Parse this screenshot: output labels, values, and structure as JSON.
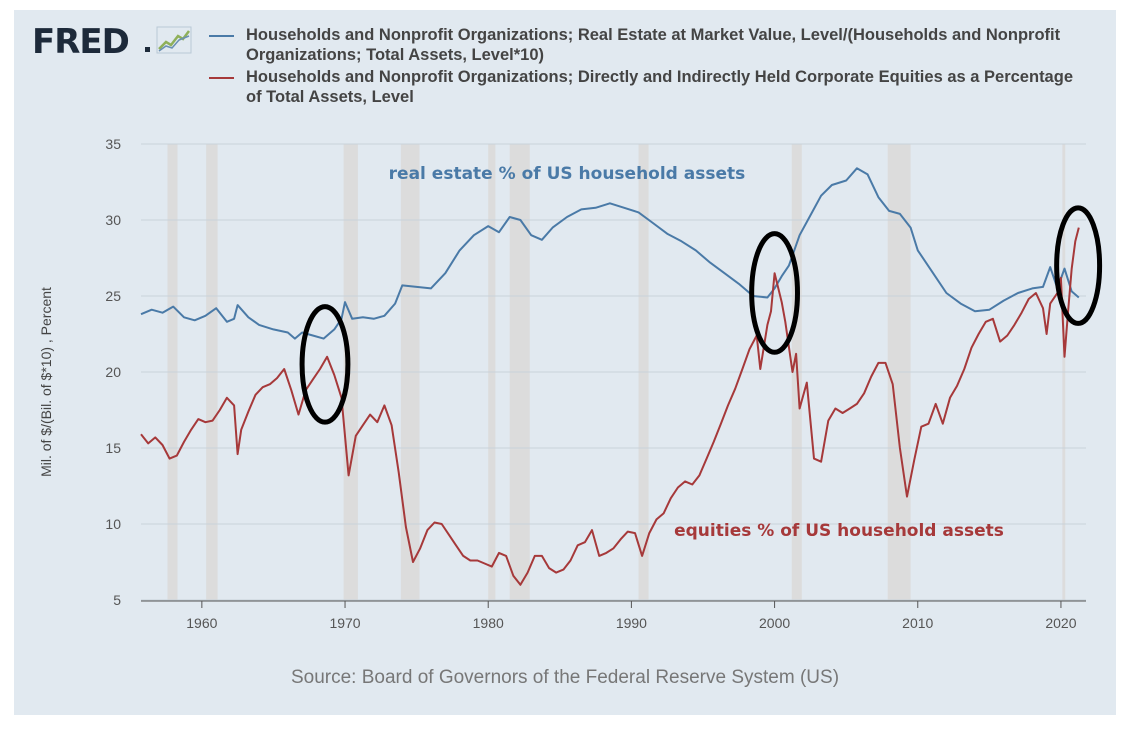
{
  "header": {
    "logo_text": "FRED",
    "logo_icon": "line-chart-icon"
  },
  "source_text": "Source: Board of Governors of the Federal Reserve System (US)",
  "colors": {
    "real_estate": "#4a7aa7",
    "equities": "#a6393a",
    "recession": "#dcdcdc",
    "circle": "#000000"
  },
  "chart_data": {
    "type": "line",
    "ylabel": "Mil. of $/(Bil. of $*10) , Percent",
    "xlabel": "",
    "xlim": [
      1955.75,
      2021.75
    ],
    "ylim": [
      5,
      35
    ],
    "x_ticks": [
      "1960",
      "1970",
      "1980",
      "1990",
      "2000",
      "2010",
      "2020"
    ],
    "y_ticks": [
      "5",
      "10",
      "15",
      "20",
      "25",
      "30",
      "35"
    ],
    "grid": "horizontal",
    "recessions": [
      [
        1957.6,
        1958.3
      ],
      [
        1960.3,
        1961.1
      ],
      [
        1969.9,
        1970.9
      ],
      [
        1973.9,
        1975.2
      ],
      [
        1980.0,
        1980.5
      ],
      [
        1981.5,
        1982.9
      ],
      [
        1990.5,
        1991.2
      ],
      [
        2001.2,
        2001.9
      ],
      [
        2007.9,
        2009.5
      ],
      [
        2020.1,
        2020.3
      ]
    ],
    "annotations": [
      {
        "text": "real estate % of US household assets",
        "x": 1985.5,
        "y": 32.7,
        "series": "real_estate"
      },
      {
        "text": "equities % of US household assets",
        "x": 2004.5,
        "y": 9.2,
        "series": "equities"
      }
    ],
    "highlight_circles": [
      {
        "x_center": 1968.6,
        "y_center": 20.5,
        "x_radius": 1.6,
        "y_radius": 3.8
      },
      {
        "x_center": 2000.0,
        "y_center": 25.2,
        "x_radius": 1.6,
        "y_radius": 3.9
      },
      {
        "x_center": 2021.2,
        "y_center": 27.0,
        "x_radius": 1.5,
        "y_radius": 3.8
      }
    ],
    "series": [
      {
        "name": "Households and Nonprofit Organizations; Real Estate at Market Value, Level/(Households and Nonprofit Organizations; Total Assets, Level*10)",
        "key": "real_estate",
        "points": [
          [
            1955.75,
            23.8
          ],
          [
            1956.5,
            24.1
          ],
          [
            1957.25,
            23.9
          ],
          [
            1958.0,
            24.3
          ],
          [
            1958.75,
            23.6
          ],
          [
            1959.5,
            23.4
          ],
          [
            1960.25,
            23.7
          ],
          [
            1961.0,
            24.2
          ],
          [
            1961.75,
            23.3
          ],
          [
            1962.25,
            23.5
          ],
          [
            1962.5,
            24.4
          ],
          [
            1963.25,
            23.6
          ],
          [
            1964.0,
            23.1
          ],
          [
            1965.0,
            22.8
          ],
          [
            1966.0,
            22.6
          ],
          [
            1966.5,
            22.2
          ],
          [
            1967.0,
            22.6
          ],
          [
            1967.75,
            22.4
          ],
          [
            1968.5,
            22.2
          ],
          [
            1969.25,
            22.8
          ],
          [
            1969.75,
            23.5
          ],
          [
            1970.0,
            24.6
          ],
          [
            1970.5,
            23.5
          ],
          [
            1971.25,
            23.6
          ],
          [
            1972.0,
            23.5
          ],
          [
            1972.75,
            23.7
          ],
          [
            1973.5,
            24.5
          ],
          [
            1974.0,
            25.7
          ],
          [
            1975.0,
            25.6
          ],
          [
            1976.0,
            25.5
          ],
          [
            1977.0,
            26.5
          ],
          [
            1978.0,
            28.0
          ],
          [
            1979.0,
            29.0
          ],
          [
            1980.0,
            29.6
          ],
          [
            1980.75,
            29.2
          ],
          [
            1981.5,
            30.2
          ],
          [
            1982.25,
            30.0
          ],
          [
            1983.0,
            29.0
          ],
          [
            1983.75,
            28.7
          ],
          [
            1984.5,
            29.5
          ],
          [
            1985.5,
            30.2
          ],
          [
            1986.5,
            30.7
          ],
          [
            1987.5,
            30.8
          ],
          [
            1988.5,
            31.1
          ],
          [
            1989.5,
            30.8
          ],
          [
            1990.5,
            30.5
          ],
          [
            1991.5,
            29.8
          ],
          [
            1992.5,
            29.1
          ],
          [
            1993.5,
            28.6
          ],
          [
            1994.5,
            28.0
          ],
          [
            1995.5,
            27.2
          ],
          [
            1996.5,
            26.5
          ],
          [
            1997.5,
            25.8
          ],
          [
            1998.5,
            25.0
          ],
          [
            1999.5,
            24.9
          ],
          [
            2000.0,
            25.5
          ],
          [
            2000.5,
            26.3
          ],
          [
            2001.0,
            27.0
          ],
          [
            2001.75,
            29.0
          ],
          [
            2002.5,
            30.3
          ],
          [
            2003.25,
            31.6
          ],
          [
            2004.0,
            32.3
          ],
          [
            2005.0,
            32.6
          ],
          [
            2005.75,
            33.4
          ],
          [
            2006.5,
            33.0
          ],
          [
            2007.25,
            31.5
          ],
          [
            2008.0,
            30.6
          ],
          [
            2008.75,
            30.4
          ],
          [
            2009.5,
            29.5
          ],
          [
            2010.0,
            28.0
          ],
          [
            2011.0,
            26.6
          ],
          [
            2012.0,
            25.2
          ],
          [
            2013.0,
            24.5
          ],
          [
            2014.0,
            24.0
          ],
          [
            2015.0,
            24.1
          ],
          [
            2016.0,
            24.7
          ],
          [
            2017.0,
            25.2
          ],
          [
            2018.0,
            25.5
          ],
          [
            2018.75,
            25.6
          ],
          [
            2019.25,
            26.9
          ],
          [
            2019.75,
            25.5
          ],
          [
            2020.25,
            26.8
          ],
          [
            2020.75,
            25.3
          ],
          [
            2021.25,
            24.9
          ]
        ]
      },
      {
        "name": "Households and Nonprofit Organizations; Directly and Indirectly Held Corporate Equities as a Percentage of Total Assets, Level",
        "key": "equities",
        "points": [
          [
            1955.75,
            15.9
          ],
          [
            1956.25,
            15.3
          ],
          [
            1956.75,
            15.7
          ],
          [
            1957.25,
            15.2
          ],
          [
            1957.75,
            14.3
          ],
          [
            1958.25,
            14.5
          ],
          [
            1958.75,
            15.4
          ],
          [
            1959.25,
            16.2
          ],
          [
            1959.75,
            16.9
          ],
          [
            1960.25,
            16.7
          ],
          [
            1960.75,
            16.8
          ],
          [
            1961.25,
            17.5
          ],
          [
            1961.75,
            18.3
          ],
          [
            1962.25,
            17.8
          ],
          [
            1962.5,
            14.6
          ],
          [
            1962.75,
            16.2
          ],
          [
            1963.25,
            17.4
          ],
          [
            1963.75,
            18.5
          ],
          [
            1964.25,
            19.0
          ],
          [
            1964.75,
            19.2
          ],
          [
            1965.25,
            19.6
          ],
          [
            1965.75,
            20.2
          ],
          [
            1966.25,
            18.8
          ],
          [
            1966.75,
            17.2
          ],
          [
            1967.25,
            18.8
          ],
          [
            1967.75,
            19.5
          ],
          [
            1968.25,
            20.2
          ],
          [
            1968.75,
            21.0
          ],
          [
            1969.25,
            19.8
          ],
          [
            1969.75,
            18.3
          ],
          [
            1970.25,
            13.2
          ],
          [
            1970.75,
            15.8
          ],
          [
            1971.25,
            16.5
          ],
          [
            1971.75,
            17.2
          ],
          [
            1972.25,
            16.7
          ],
          [
            1972.75,
            17.8
          ],
          [
            1973.25,
            16.5
          ],
          [
            1973.75,
            13.4
          ],
          [
            1974.25,
            9.8
          ],
          [
            1974.75,
            7.5
          ],
          [
            1975.25,
            8.4
          ],
          [
            1975.75,
            9.6
          ],
          [
            1976.25,
            10.1
          ],
          [
            1976.75,
            10.0
          ],
          [
            1977.25,
            9.3
          ],
          [
            1977.75,
            8.6
          ],
          [
            1978.25,
            7.9
          ],
          [
            1978.75,
            7.6
          ],
          [
            1979.25,
            7.6
          ],
          [
            1979.75,
            7.4
          ],
          [
            1980.25,
            7.2
          ],
          [
            1980.75,
            8.1
          ],
          [
            1981.25,
            7.9
          ],
          [
            1981.75,
            6.6
          ],
          [
            1982.25,
            6.0
          ],
          [
            1982.75,
            6.8
          ],
          [
            1983.25,
            7.9
          ],
          [
            1983.75,
            7.9
          ],
          [
            1984.25,
            7.1
          ],
          [
            1984.75,
            6.8
          ],
          [
            1985.25,
            7.0
          ],
          [
            1985.75,
            7.6
          ],
          [
            1986.25,
            8.6
          ],
          [
            1986.75,
            8.8
          ],
          [
            1987.25,
            9.6
          ],
          [
            1987.75,
            7.9
          ],
          [
            1988.25,
            8.1
          ],
          [
            1988.75,
            8.4
          ],
          [
            1989.25,
            9.0
          ],
          [
            1989.75,
            9.5
          ],
          [
            1990.25,
            9.4
          ],
          [
            1990.75,
            7.9
          ],
          [
            1991.25,
            9.4
          ],
          [
            1991.75,
            10.3
          ],
          [
            1992.25,
            10.7
          ],
          [
            1992.75,
            11.7
          ],
          [
            1993.25,
            12.4
          ],
          [
            1993.75,
            12.8
          ],
          [
            1994.25,
            12.6
          ],
          [
            1994.75,
            13.2
          ],
          [
            1995.25,
            14.3
          ],
          [
            1995.75,
            15.4
          ],
          [
            1996.25,
            16.6
          ],
          [
            1996.75,
            17.8
          ],
          [
            1997.25,
            18.9
          ],
          [
            1997.75,
            20.2
          ],
          [
            1998.25,
            21.5
          ],
          [
            1998.75,
            22.4
          ],
          [
            1999.0,
            20.2
          ],
          [
            1999.5,
            23.1
          ],
          [
            1999.75,
            24.0
          ],
          [
            2000.0,
            26.5
          ],
          [
            2000.5,
            24.6
          ],
          [
            2000.75,
            23.3
          ],
          [
            2001.25,
            20.0
          ],
          [
            2001.5,
            21.2
          ],
          [
            2001.75,
            17.6
          ],
          [
            2002.25,
            19.3
          ],
          [
            2002.75,
            14.3
          ],
          [
            2003.25,
            14.1
          ],
          [
            2003.75,
            16.8
          ],
          [
            2004.25,
            17.6
          ],
          [
            2004.75,
            17.3
          ],
          [
            2005.25,
            17.6
          ],
          [
            2005.75,
            17.9
          ],
          [
            2006.25,
            18.6
          ],
          [
            2006.75,
            19.7
          ],
          [
            2007.25,
            20.6
          ],
          [
            2007.75,
            20.6
          ],
          [
            2008.25,
            19.2
          ],
          [
            2008.75,
            15.0
          ],
          [
            2009.25,
            11.8
          ],
          [
            2009.75,
            14.2
          ],
          [
            2010.25,
            16.4
          ],
          [
            2010.75,
            16.6
          ],
          [
            2011.25,
            17.9
          ],
          [
            2011.75,
            16.6
          ],
          [
            2012.25,
            18.3
          ],
          [
            2012.75,
            19.1
          ],
          [
            2013.25,
            20.2
          ],
          [
            2013.75,
            21.6
          ],
          [
            2014.25,
            22.5
          ],
          [
            2014.75,
            23.3
          ],
          [
            2015.25,
            23.5
          ],
          [
            2015.75,
            22.0
          ],
          [
            2016.25,
            22.4
          ],
          [
            2016.75,
            23.1
          ],
          [
            2017.25,
            23.9
          ],
          [
            2017.75,
            24.8
          ],
          [
            2018.25,
            25.2
          ],
          [
            2018.75,
            24.2
          ],
          [
            2019.0,
            22.5
          ],
          [
            2019.25,
            24.5
          ],
          [
            2019.75,
            25.2
          ],
          [
            2020.0,
            26.2
          ],
          [
            2020.25,
            21.0
          ],
          [
            2020.5,
            24.0
          ],
          [
            2020.75,
            26.8
          ],
          [
            2021.0,
            28.6
          ],
          [
            2021.25,
            29.5
          ]
        ]
      }
    ]
  }
}
